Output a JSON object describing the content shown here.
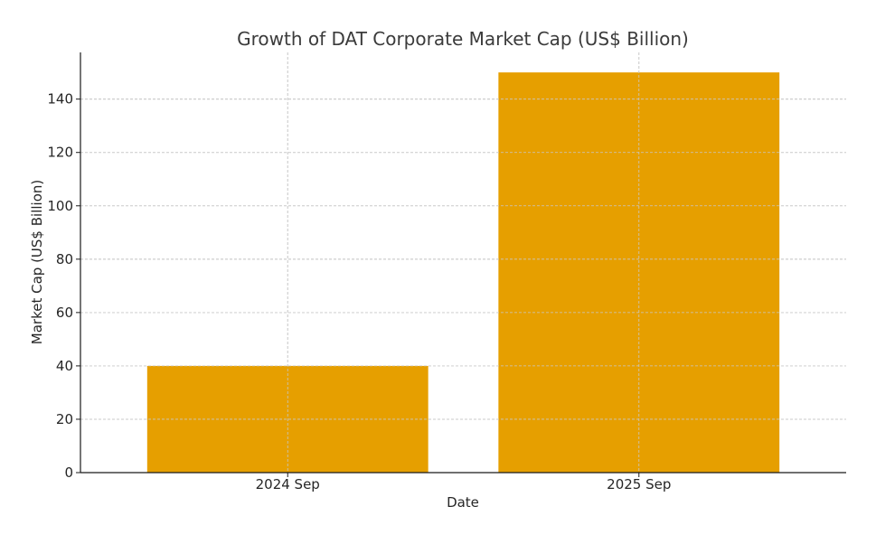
{
  "chart_data": {
    "type": "bar",
    "title": "Growth of DAT Corporate Market Cap (US$ Billion)",
    "xlabel": "Date",
    "ylabel": "Market Cap (US$ Billion)",
    "categories": [
      "2024 Sep",
      "2025 Sep"
    ],
    "values": [
      40,
      150
    ],
    "ylim": [
      0,
      157.5
    ],
    "yticks": [
      0,
      20,
      40,
      60,
      80,
      100,
      120,
      140
    ],
    "grid": true,
    "legend": null,
    "colors": {
      "bar": "#E69F00",
      "axis": "#1a1a1a",
      "grid": "#c8c8c8",
      "title": "#3b3b3b",
      "text": "#262626"
    }
  }
}
